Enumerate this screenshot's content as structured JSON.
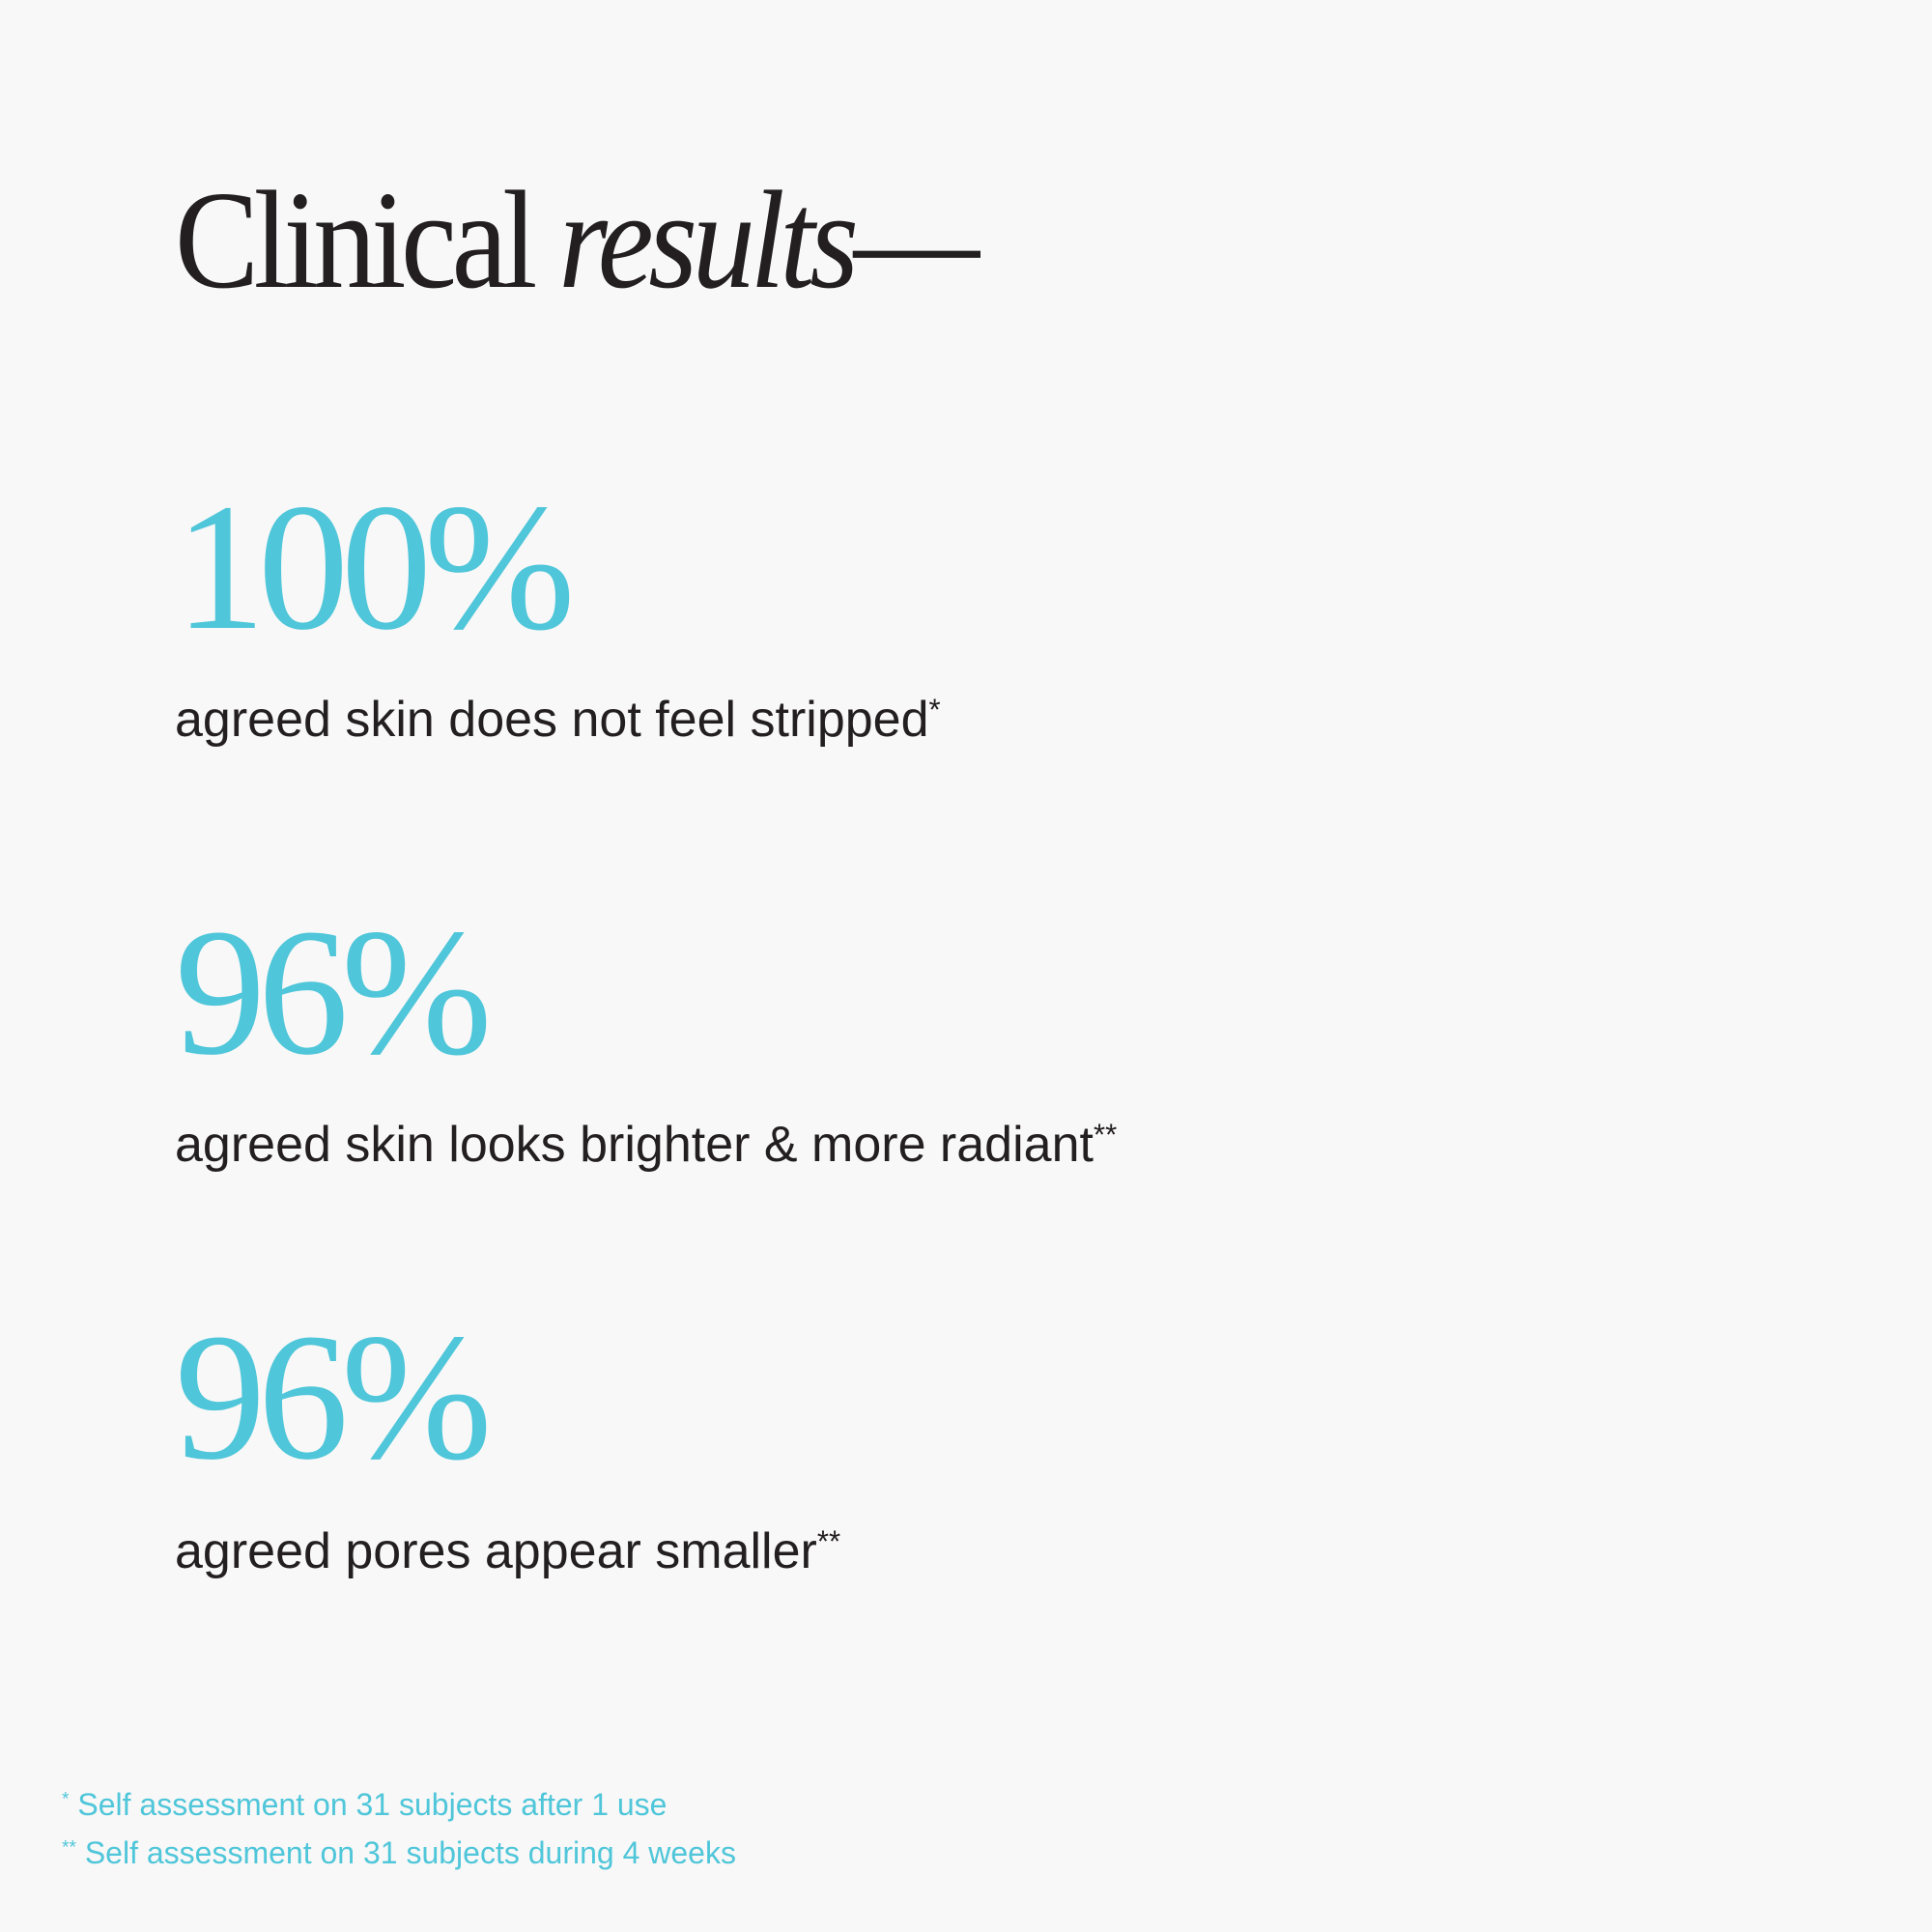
{
  "colors": {
    "accent": "#4fc6d9",
    "text": "#231f20",
    "background": "#f8f8f8"
  },
  "title": {
    "regular": "Clinical",
    "italic": "results",
    "dash": "—"
  },
  "stats": [
    {
      "value": "100%",
      "label": "agreed skin does not feel stripped",
      "mark": "*"
    },
    {
      "value": "96%",
      "label": "agreed skin looks brighter & more radiant",
      "mark": "**"
    },
    {
      "value": "96%",
      "label": "agreed pores appear smaller",
      "mark": "**"
    }
  ],
  "footnotes": [
    {
      "mark": "*",
      "text": "Self assessment on 31 subjects after 1 use"
    },
    {
      "mark": "**",
      "text": "Self assessment on 31 subjects during 4 weeks"
    }
  ]
}
